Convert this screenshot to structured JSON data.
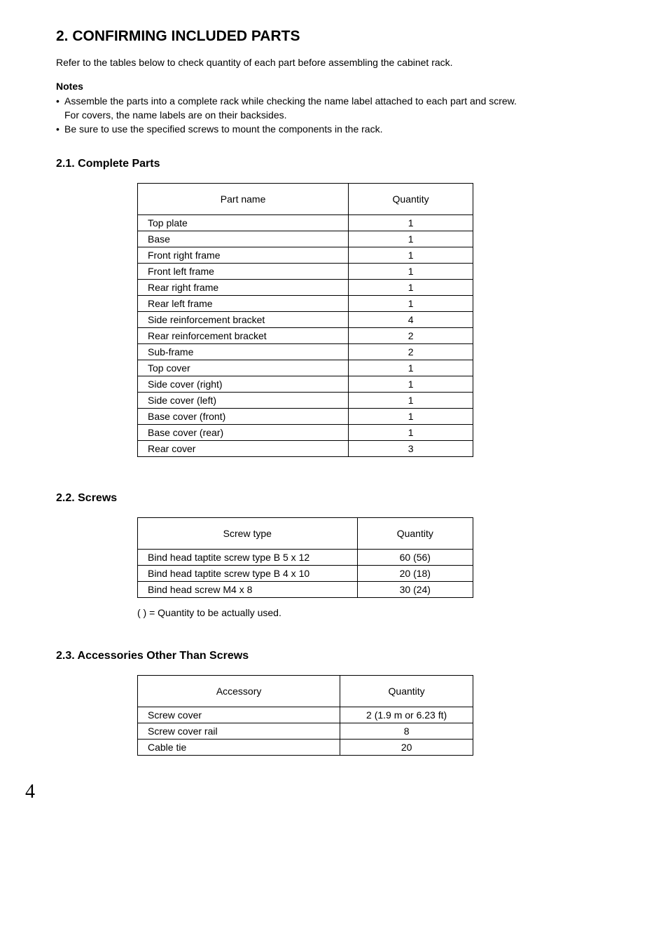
{
  "heading": "2. CONFIRMING INCLUDED PARTS",
  "intro": "Refer to the tables below to check quantity of each part before assembling the cabinet rack.",
  "notes_label": "Notes",
  "notes": [
    {
      "main": "Assemble the parts into a complete rack while checking the name label attached to each part and screw.",
      "sub": "For covers, the name labels are on their backsides."
    },
    {
      "main": "Be sure to use the specified screws to mount the components in the rack."
    }
  ],
  "sections": {
    "parts": {
      "title": "2.1. Complete Parts",
      "columns": [
        "Part name",
        "Quantity"
      ],
      "rows": [
        [
          "Top plate",
          "1"
        ],
        [
          "Base",
          "1"
        ],
        [
          "Front right frame",
          "1"
        ],
        [
          "Front left frame",
          "1"
        ],
        [
          "Rear right frame",
          "1"
        ],
        [
          "Rear left frame",
          "1"
        ],
        [
          "Side reinforcement bracket",
          "4"
        ],
        [
          "Rear reinforcement bracket",
          "2"
        ],
        [
          "Sub-frame",
          "2"
        ],
        [
          "Top cover",
          "1"
        ],
        [
          "Side cover (right)",
          "1"
        ],
        [
          "Side cover (left)",
          "1"
        ],
        [
          "Base cover (front)",
          "1"
        ],
        [
          "Base cover (rear)",
          "1"
        ],
        [
          "Rear cover",
          "3"
        ]
      ]
    },
    "screws": {
      "title": "2.2. Screws",
      "columns": [
        "Screw type",
        "Quantity"
      ],
      "rows": [
        [
          "Bind head taptite screw type B 5 x 12",
          "60 (56)"
        ],
        [
          "Bind head taptite screw type B 4 x 10",
          "20 (18)"
        ],
        [
          "Bind head screw M4 x 8",
          "30 (24)"
        ]
      ],
      "footnote": "(  ) = Quantity to be actually used."
    },
    "accessories": {
      "title": "2.3. Accessories Other Than Screws",
      "columns": [
        "Accessory",
        "Quantity"
      ],
      "rows": [
        [
          "Screw cover",
          "2 (1.9 m or 6.23 ft)"
        ],
        [
          "Screw cover rail",
          "8"
        ],
        [
          "Cable tie",
          "20"
        ]
      ]
    }
  },
  "page_number": "4"
}
